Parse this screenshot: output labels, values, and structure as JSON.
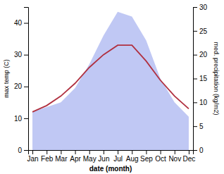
{
  "chart_data": {
    "type": "line",
    "categories": [
      "Jan",
      "Feb",
      "Mar",
      "Apr",
      "May",
      "Jun",
      "Jul",
      "Aug",
      "Sep",
      "Oct",
      "Nov",
      "Dec"
    ],
    "x_label": "date (month)",
    "y_label": "max temp (C)",
    "y2_label": "med. precipitation (kg/m2)",
    "series": [
      {
        "type": "area",
        "axis": "y2",
        "color": "#c0c8f4",
        "values": [
          8,
          9,
          10,
          13,
          18,
          24,
          29,
          28,
          23,
          15,
          10,
          7
        ]
      },
      {
        "type": "line",
        "color": "#b03040",
        "values": [
          12,
          14,
          17,
          21,
          26,
          30,
          33,
          33,
          28,
          22,
          17,
          13
        ]
      }
    ],
    "ylim": [
      0,
      45
    ],
    "yticks": [
      0,
      10,
      20,
      30,
      40
    ],
    "y2lim": [
      0,
      30
    ],
    "y2ticks": [
      0,
      5,
      10,
      15,
      20,
      25,
      30
    ]
  }
}
